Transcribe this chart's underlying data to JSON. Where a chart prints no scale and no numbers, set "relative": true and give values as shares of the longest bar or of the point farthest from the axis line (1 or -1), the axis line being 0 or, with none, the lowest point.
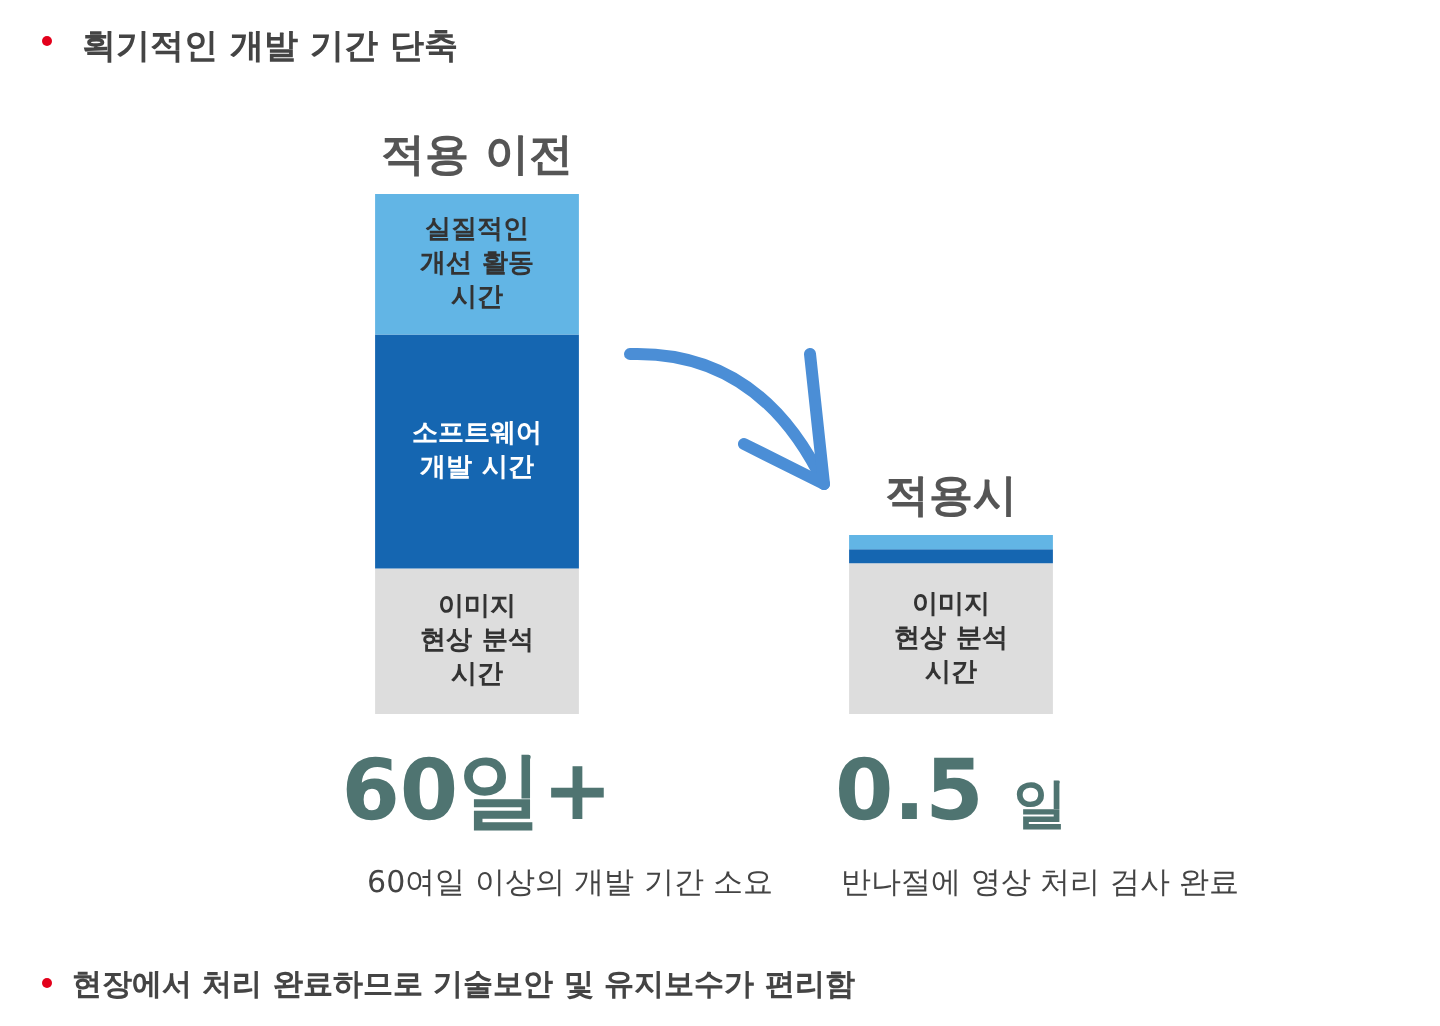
{
  "chart_data": {
    "type": "bar",
    "title": "획기적인 개발 기간 단축",
    "categories": [
      "적용 이전",
      "적용시"
    ],
    "stacked": true,
    "relative": true,
    "series": [
      {
        "name": "이미지 현상 분석 시간",
        "color": "#dddddd",
        "values": [
          0.28,
          0.29
        ]
      },
      {
        "name": "소프트웨어 개발 시간",
        "color": "#1566b1",
        "values": [
          0.45,
          0.027
        ]
      },
      {
        "name": "실질적인 개선 활동 시간",
        "color": "#62b5e5",
        "values": [
          0.27,
          0.027
        ]
      }
    ],
    "annotations": [
      "60일+",
      "60여일 이상의 개발 기간 소요",
      "0.5 일",
      "반나절에 영상 처리 검사 완료",
      "현장에서 처리 완료하므로 기술보안 및 유지보수가 편리함"
    ]
  }
}
